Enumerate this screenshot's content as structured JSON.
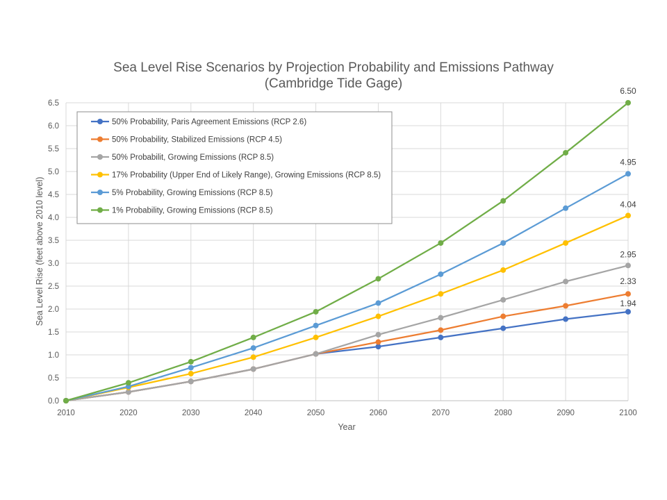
{
  "colors": {
    "grid": "#d9d9d9",
    "axis": "#bfbfbf",
    "legend_border": "#8c8c8c"
  },
  "chart_data": {
    "type": "line",
    "title": "Sea Level Rise Scenarios by Projection Probability and Emissions Pathway",
    "subtitle": "(Cambridge Tide Gage)",
    "xlabel": "Year",
    "ylabel": "Sea Level Rise (feet above 2010 level)",
    "x": [
      2010,
      2020,
      2030,
      2040,
      2050,
      2060,
      2070,
      2080,
      2090,
      2100
    ],
    "x_tick_labels": [
      "2010",
      "2020",
      "2030",
      "2040",
      "2050",
      "2060",
      "2070",
      "2080",
      "2090",
      "2100"
    ],
    "ylim": [
      0,
      6.5
    ],
    "y_tick_labels": [
      "0.0",
      "0.5",
      "1.0",
      "1.5",
      "2.0",
      "2.5",
      "3.0",
      "3.5",
      "4.0",
      "4.5",
      "5.0",
      "5.5",
      "6.0",
      "6.5"
    ],
    "grid": true,
    "legend_position": "top-left",
    "series": [
      {
        "name": "50% Probability, Paris Agreement Emissions (RCP 2.6)",
        "color": "#4472c4",
        "values": [
          0.0,
          0.19,
          0.42,
          0.69,
          1.02,
          1.18,
          1.38,
          1.58,
          1.78,
          1.94
        ],
        "end_label": "1.94"
      },
      {
        "name": "50% Probability, Stabilized Emissions (RCP 4.5)",
        "color": "#ed7d31",
        "values": [
          0.0,
          0.19,
          0.42,
          0.69,
          1.02,
          1.28,
          1.54,
          1.84,
          2.07,
          2.33
        ],
        "end_label": "2.33"
      },
      {
        "name": "50% Probabilit, Growing Emissions (RCP 8.5)",
        "color": "#a5a5a5",
        "values": [
          0.0,
          0.19,
          0.42,
          0.69,
          1.02,
          1.44,
          1.81,
          2.2,
          2.6,
          2.95
        ],
        "end_label": "2.95"
      },
      {
        "name": "17% Probability (Upper End of Likely Range), Growing Emissions (RCP 8.5)",
        "color": "#ffc000",
        "values": [
          0.0,
          0.29,
          0.59,
          0.95,
          1.38,
          1.84,
          2.33,
          2.85,
          3.44,
          4.04
        ],
        "end_label": "4.04"
      },
      {
        "name": "5% Probability, Growing Emissions (RCP 8.5)",
        "color": "#5b9bd5",
        "values": [
          0.0,
          0.31,
          0.72,
          1.15,
          1.64,
          2.13,
          2.76,
          3.44,
          4.2,
          4.95
        ],
        "end_label": "4.95"
      },
      {
        "name": "1% Probability, Growing Emissions (RCP 8.5)",
        "color": "#70ad47",
        "values": [
          0.0,
          0.39,
          0.85,
          1.38,
          1.94,
          2.66,
          3.44,
          4.36,
          5.41,
          6.5
        ],
        "end_label": "6.50"
      }
    ]
  }
}
